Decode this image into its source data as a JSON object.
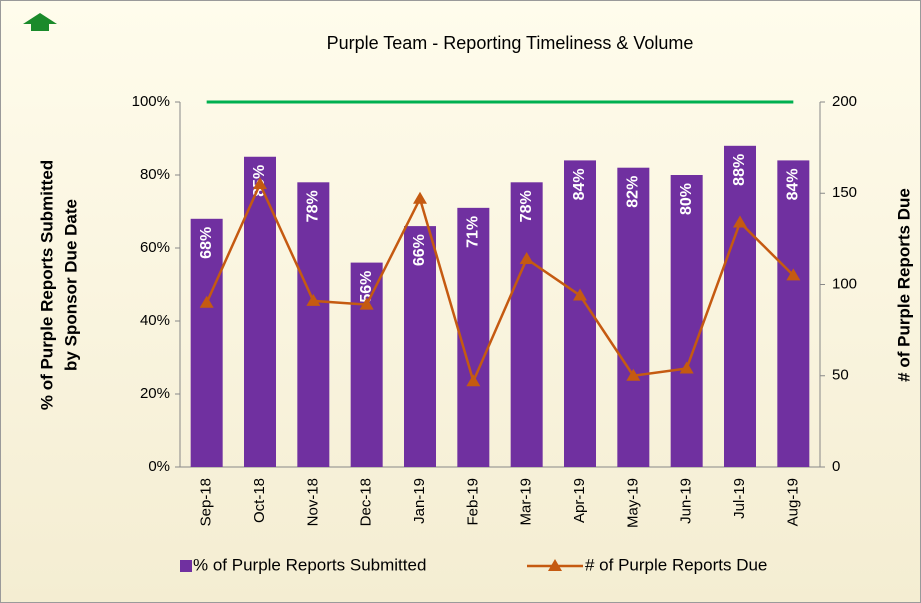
{
  "chart_data": {
    "type": "bar",
    "title": "Purple Team - Reporting Timeliness & Volume",
    "ylabel": [
      "% of Purple Reports Submitted",
      "by Sponsor Due Date"
    ],
    "y2label": "# of Purple Reports Due",
    "categories": [
      "Sep-18",
      "Oct-18",
      "Nov-18",
      "Dec-18",
      "Jan-19",
      "Feb-19",
      "Mar-19",
      "Apr-19",
      "May-19",
      "Jun-19",
      "Jul-19",
      "Aug-19"
    ],
    "series": [
      {
        "name": "% of Purple Reports Submitted",
        "type": "bar",
        "axis": "y",
        "color": "#7030a0",
        "values": [
          68,
          85,
          78,
          56,
          66,
          71,
          78,
          84,
          82,
          80,
          88,
          84
        ],
        "value_labels": [
          "68%",
          "85%",
          "78%",
          "56%",
          "66%",
          "71%",
          "78%",
          "84%",
          "82%",
          "80%",
          "88%",
          "84%"
        ]
      },
      {
        "name": "# of Purple Reports Due",
        "type": "line",
        "axis": "y2",
        "color": "#c55a11",
        "values": [
          90,
          155,
          91,
          89,
          147,
          47,
          114,
          94,
          50,
          54,
          134,
          105
        ]
      }
    ],
    "target_line": {
      "value": 100,
      "color": "#00b050"
    },
    "ylim": [
      0,
      100
    ],
    "yticks": [
      {
        "value": 0,
        "label": "0%"
      },
      {
        "value": 20,
        "label": "20%"
      },
      {
        "value": 40,
        "label": "40%"
      },
      {
        "value": 60,
        "label": "60%"
      },
      {
        "value": 80,
        "label": "80%"
      },
      {
        "value": 100,
        "label": "100%"
      }
    ],
    "y2lim": [
      0,
      200
    ],
    "y2ticks": [
      0,
      50,
      100,
      150,
      200
    ],
    "legend": "bottom"
  }
}
